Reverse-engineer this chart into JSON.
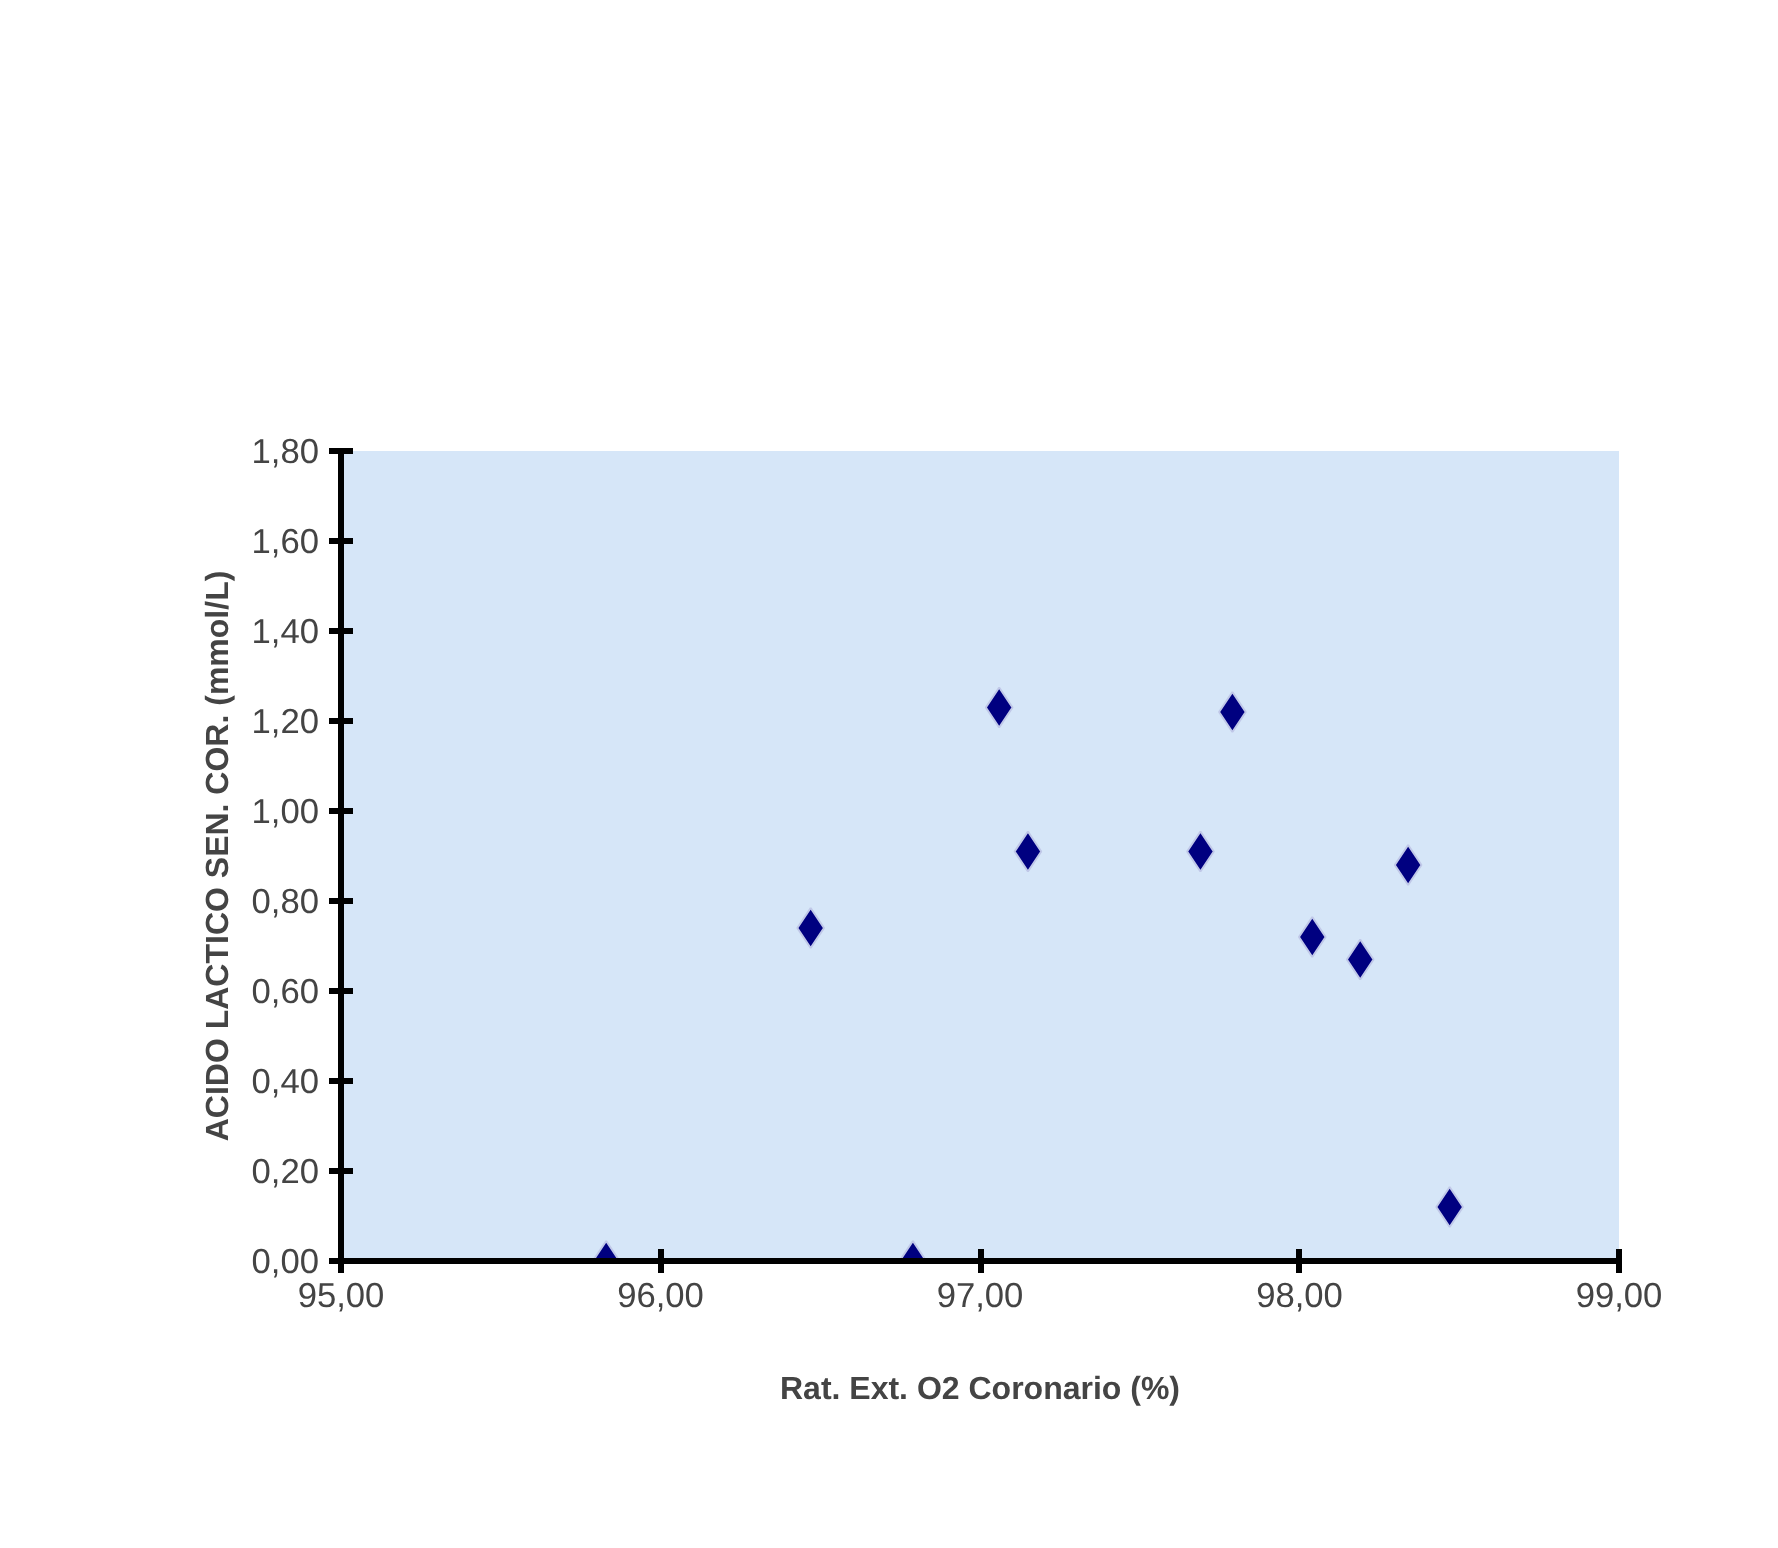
{
  "chart_data": {
    "type": "scatter",
    "xlabel": "Rat. Ext. O2 Coronario (%)",
    "ylabel": "ACIDO LACTICO SEN. COR. (mmol/L)",
    "x": [
      95.83,
      96.79,
      96.47,
      97.06,
      97.15,
      97.69,
      97.79,
      98.04,
      98.19,
      98.34,
      98.47
    ],
    "series": [
      {
        "color": "#000080",
        "values": [
          0,
          0,
          0.74,
          1.23,
          0.91,
          0.91,
          1.22,
          0.72,
          0.67,
          0.88,
          0.12
        ]
      }
    ],
    "xlim": [
      95,
      99
    ],
    "ylim": [
      0,
      1.8
    ],
    "xticks": [
      {
        "value": 95,
        "label": "95,00"
      },
      {
        "value": 96,
        "label": "96,00"
      },
      {
        "value": 97,
        "label": "97,00"
      },
      {
        "value": 98,
        "label": "98,00"
      },
      {
        "value": 99,
        "label": "99,00"
      }
    ],
    "yticks": [
      {
        "value": 0,
        "label": "0,00"
      },
      {
        "value": 0.2,
        "label": "0,20"
      },
      {
        "value": 0.4,
        "label": "0,40"
      },
      {
        "value": 0.6,
        "label": "0,60"
      },
      {
        "value": 0.8,
        "label": "0,80"
      },
      {
        "value": 1.0,
        "label": "1,00"
      },
      {
        "value": 1.2,
        "label": "1,20"
      },
      {
        "value": 1.4,
        "label": "1,40"
      },
      {
        "value": 1.6,
        "label": "1,60"
      },
      {
        "value": 1.8,
        "label": "1,80"
      }
    ],
    "grid": false,
    "marker": "diamond"
  }
}
